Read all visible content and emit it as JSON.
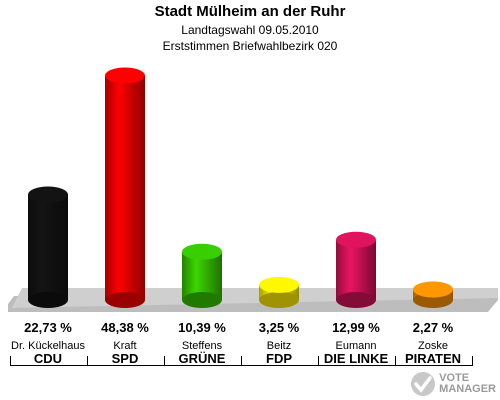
{
  "header": {
    "title": "Stadt Mülheim an der Ruhr",
    "subtitle1": "Landtagswahl 09.05.2010",
    "subtitle2": "Erststimmen Briefwahlbezirk 020"
  },
  "chart_data": {
    "type": "bar",
    "title": "Stadt Mülheim an der Ruhr",
    "categories": [
      "CDU",
      "SPD",
      "GRÜNE",
      "FDP",
      "DIE LINKE",
      "PIRATEN"
    ],
    "candidates": [
      "Dr. Kückelhaus",
      "Kraft",
      "Steffens",
      "Beitz",
      "Eumann",
      "Zoske"
    ],
    "values": [
      22.73,
      48.38,
      10.39,
      3.25,
      12.99,
      2.27
    ],
    "value_labels": [
      "22,73 %",
      "48,38 %",
      "10,39 %",
      "3,25 %",
      "12,99 %",
      "2,27 %"
    ],
    "colors": [
      "#111111",
      "#ee0000",
      "#33bb00",
      "#f5e200",
      "#cc1155",
      "#f08a00"
    ],
    "ylim": [
      0,
      50
    ],
    "grid": false,
    "legend": "none"
  },
  "logo": {
    "line1": "VOTE",
    "line2": "MANAGER"
  }
}
